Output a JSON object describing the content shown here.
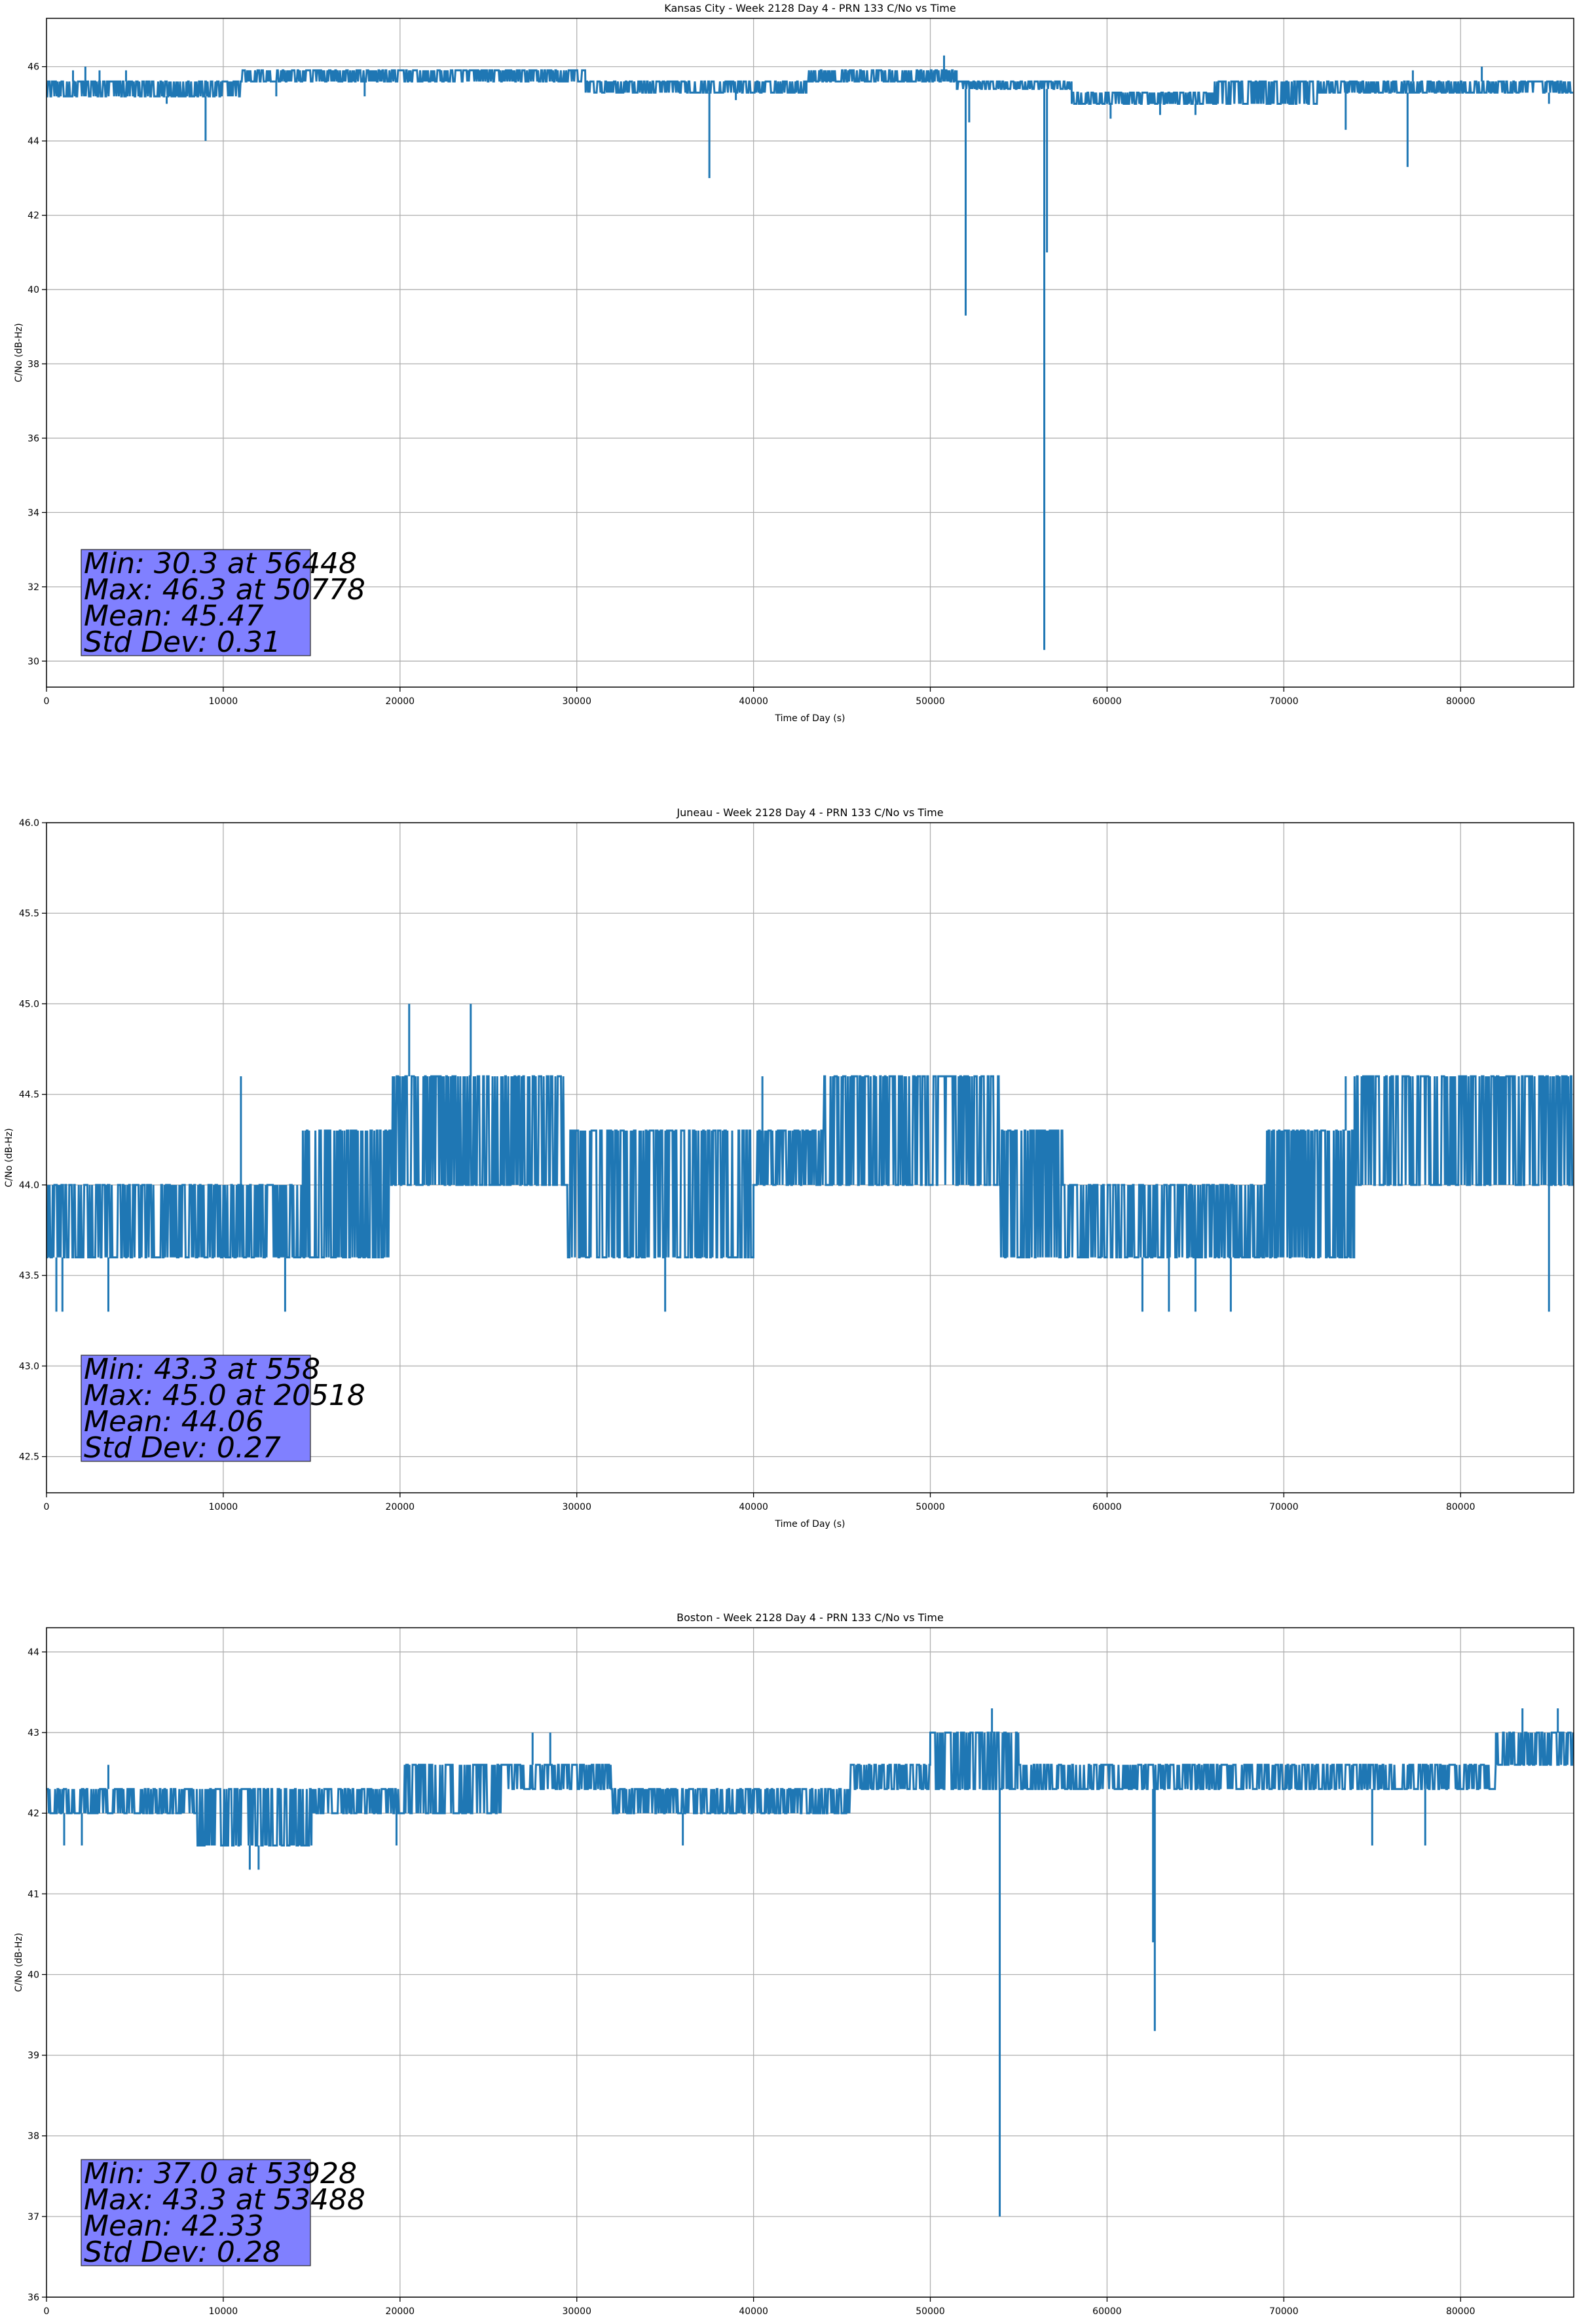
{
  "chart_data": [
    {
      "type": "line",
      "title": "Kansas City - Week 2128 Day 4 - PRN 133 C/No vs Time",
      "xlabel": "Time of Day (s)",
      "ylabel": "C/No (dB-Hz)",
      "xlim": [
        0,
        86400
      ],
      "ylim": [
        29.3,
        47.3
      ],
      "xticks": [
        0,
        10000,
        20000,
        30000,
        40000,
        50000,
        60000,
        70000,
        80000
      ],
      "yticks": [
        30,
        32,
        34,
        36,
        38,
        40,
        42,
        44,
        46
      ],
      "ytick_labels": [
        "30",
        "32",
        "34",
        "36",
        "38",
        "40",
        "42",
        "44",
        "46"
      ],
      "grid": true,
      "series_color": "#1f77b4",
      "band": [
        {
          "from": 0,
          "to": 11000,
          "low": 45.2,
          "high": 45.6
        },
        {
          "from": 11000,
          "to": 30500,
          "low": 45.6,
          "high": 45.9
        },
        {
          "from": 30500,
          "to": 43000,
          "low": 45.3,
          "high": 45.6
        },
        {
          "from": 43000,
          "to": 51500,
          "low": 45.6,
          "high": 45.9
        },
        {
          "from": 51500,
          "to": 58000,
          "low": 45.4,
          "high": 45.6
        },
        {
          "from": 58000,
          "to": 66000,
          "low": 45.0,
          "high": 45.3
        },
        {
          "from": 66000,
          "to": 72000,
          "low": 45.0,
          "high": 45.6
        },
        {
          "from": 72000,
          "to": 86400,
          "low": 45.3,
          "high": 45.6
        }
      ],
      "spikes": [
        {
          "x": 1500,
          "y": 45.9
        },
        {
          "x": 2200,
          "y": 46.0
        },
        {
          "x": 3000,
          "y": 45.9
        },
        {
          "x": 4500,
          "y": 45.9
        },
        {
          "x": 6800,
          "y": 45.0
        },
        {
          "x": 9000,
          "y": 44.0
        },
        {
          "x": 13000,
          "y": 45.2
        },
        {
          "x": 18000,
          "y": 45.2
        },
        {
          "x": 37500,
          "y": 43.0
        },
        {
          "x": 39000,
          "y": 45.1
        },
        {
          "x": 50778,
          "y": 46.3
        },
        {
          "x": 52000,
          "y": 39.3
        },
        {
          "x": 52200,
          "y": 44.5
        },
        {
          "x": 56448,
          "y": 30.3
        },
        {
          "x": 56600,
          "y": 41.0
        },
        {
          "x": 60200,
          "y": 44.6
        },
        {
          "x": 63000,
          "y": 44.7
        },
        {
          "x": 65000,
          "y": 44.7
        },
        {
          "x": 73500,
          "y": 44.3
        },
        {
          "x": 77000,
          "y": 43.3
        },
        {
          "x": 77300,
          "y": 45.9
        },
        {
          "x": 81200,
          "y": 46.0
        },
        {
          "x": 85000,
          "y": 45.0
        }
      ],
      "stats": [
        "Min: 30.3 at 56448",
        "Max: 46.3 at 50778",
        "Mean: 45.47",
        "Std Dev: 0.31"
      ],
      "stats_box_color": "#8080ff"
    },
    {
      "type": "line",
      "title": "Juneau - Week 2128 Day 4 - PRN 133 C/No vs Time",
      "xlabel": "Time of Day (s)",
      "ylabel": "C/No (dB-Hz)",
      "xlim": [
        0,
        86400
      ],
      "ylim": [
        42.3,
        46.0
      ],
      "xticks": [
        0,
        10000,
        20000,
        30000,
        40000,
        50000,
        60000,
        70000,
        80000
      ],
      "yticks": [
        42.5,
        43.0,
        43.5,
        44.0,
        44.5,
        45.0,
        45.5,
        46.0
      ],
      "ytick_labels": [
        "42.5",
        "43.0",
        "43.5",
        "44.0",
        "44.5",
        "45.0",
        "45.5",
        "46.0"
      ],
      "grid": true,
      "series_color": "#1f77b4",
      "band": [
        {
          "from": 0,
          "to": 14500,
          "low": 43.6,
          "high": 44.0
        },
        {
          "from": 14500,
          "to": 19500,
          "low": 43.6,
          "high": 44.3
        },
        {
          "from": 19500,
          "to": 29500,
          "low": 44.0,
          "high": 44.6
        },
        {
          "from": 29500,
          "to": 40000,
          "low": 43.6,
          "high": 44.3
        },
        {
          "from": 40000,
          "to": 44000,
          "low": 44.0,
          "high": 44.3
        },
        {
          "from": 44000,
          "to": 54000,
          "low": 44.0,
          "high": 44.6
        },
        {
          "from": 54000,
          "to": 57500,
          "low": 43.6,
          "high": 44.3
        },
        {
          "from": 57500,
          "to": 69000,
          "low": 43.6,
          "high": 44.0
        },
        {
          "from": 69000,
          "to": 74000,
          "low": 43.6,
          "high": 44.3
        },
        {
          "from": 74000,
          "to": 86400,
          "low": 44.0,
          "high": 44.6
        }
      ],
      "spikes": [
        {
          "x": 558,
          "y": 43.3
        },
        {
          "x": 900,
          "y": 43.3
        },
        {
          "x": 3500,
          "y": 43.3
        },
        {
          "x": 11000,
          "y": 44.6
        },
        {
          "x": 13500,
          "y": 43.3
        },
        {
          "x": 20518,
          "y": 45.0
        },
        {
          "x": 24000,
          "y": 45.0
        },
        {
          "x": 35000,
          "y": 43.3
        },
        {
          "x": 40500,
          "y": 44.6
        },
        {
          "x": 62000,
          "y": 43.3
        },
        {
          "x": 63500,
          "y": 43.3
        },
        {
          "x": 65000,
          "y": 43.3
        },
        {
          "x": 67000,
          "y": 43.3
        },
        {
          "x": 73500,
          "y": 44.6
        },
        {
          "x": 85000,
          "y": 43.3
        }
      ],
      "stats": [
        "Min: 43.3 at 558",
        "Max: 45.0 at 20518",
        "Mean: 44.06",
        "Std Dev: 0.27"
      ],
      "stats_box_color": "#8080ff"
    },
    {
      "type": "line",
      "title": "Boston - Week 2128 Day 4 - PRN 133 C/No vs Time",
      "xlabel": "Time of Day (s)",
      "ylabel": "C/No (dB-Hz)",
      "xlim": [
        0,
        86400
      ],
      "ylim": [
        36.0,
        44.3
      ],
      "xticks": [
        0,
        10000,
        20000,
        30000,
        40000,
        50000,
        60000,
        70000,
        80000
      ],
      "yticks": [
        36,
        37,
        38,
        39,
        40,
        41,
        42,
        43,
        44
      ],
      "ytick_labels": [
        "36",
        "37",
        "38",
        "39",
        "40",
        "41",
        "42",
        "43",
        "44"
      ],
      "grid": true,
      "series_color": "#1f77b4",
      "band": [
        {
          "from": 0,
          "to": 8500,
          "low": 42.0,
          "high": 42.3
        },
        {
          "from": 8500,
          "to": 15000,
          "low": 41.6,
          "high": 42.3
        },
        {
          "from": 15000,
          "to": 20000,
          "low": 42.0,
          "high": 42.3
        },
        {
          "from": 20000,
          "to": 26000,
          "low": 42.0,
          "high": 42.6
        },
        {
          "from": 26000,
          "to": 32000,
          "low": 42.3,
          "high": 42.6
        },
        {
          "from": 32000,
          "to": 40000,
          "low": 42.0,
          "high": 42.3
        },
        {
          "from": 40000,
          "to": 45500,
          "low": 42.0,
          "high": 42.3
        },
        {
          "from": 45500,
          "to": 50000,
          "low": 42.3,
          "high": 42.6
        },
        {
          "from": 50000,
          "to": 55000,
          "low": 42.3,
          "high": 43.0
        },
        {
          "from": 55000,
          "to": 82000,
          "low": 42.3,
          "high": 42.6
        },
        {
          "from": 82000,
          "to": 86400,
          "low": 42.6,
          "high": 43.0
        }
      ],
      "spikes": [
        {
          "x": 1000,
          "y": 41.6
        },
        {
          "x": 2000,
          "y": 41.6
        },
        {
          "x": 3500,
          "y": 42.6
        },
        {
          "x": 11500,
          "y": 41.3
        },
        {
          "x": 12000,
          "y": 41.3
        },
        {
          "x": 19800,
          "y": 41.6
        },
        {
          "x": 27500,
          "y": 43.0
        },
        {
          "x": 28500,
          "y": 43.0
        },
        {
          "x": 36000,
          "y": 41.6
        },
        {
          "x": 53488,
          "y": 43.3
        },
        {
          "x": 53928,
          "y": 37.0
        },
        {
          "x": 62700,
          "y": 39.3
        },
        {
          "x": 62600,
          "y": 40.4
        },
        {
          "x": 75000,
          "y": 41.6
        },
        {
          "x": 78000,
          "y": 41.6
        },
        {
          "x": 83500,
          "y": 43.3
        },
        {
          "x": 85500,
          "y": 43.3
        }
      ],
      "stats": [
        "Min: 37.0 at 53928",
        "Max: 43.3 at 53488",
        "Mean: 42.33",
        "Std Dev: 0.28"
      ],
      "stats_box_color": "#8080ff"
    }
  ]
}
